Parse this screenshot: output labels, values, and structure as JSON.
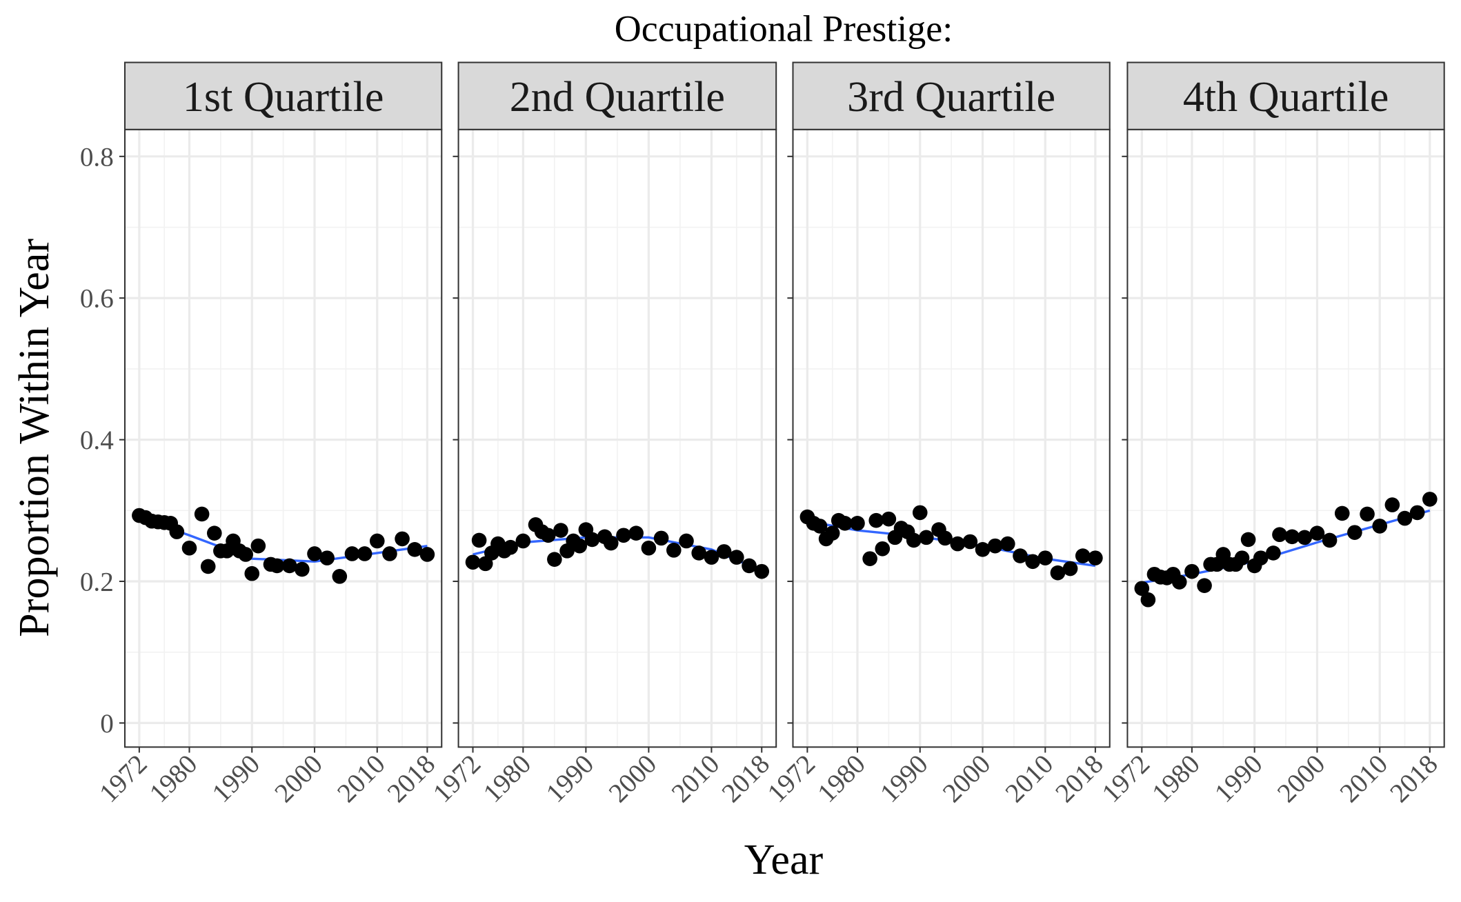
{
  "figure": {
    "title": "Occupational Prestige:",
    "x_label": "Year",
    "y_label": "Proportion Within Year"
  },
  "chart_data": [
    {
      "type": "scatter",
      "title": "1st Quartile",
      "color": "#000000",
      "smooth_color": "#3366ff",
      "x": [
        1972,
        1973,
        1974,
        1975,
        1976,
        1977,
        1978,
        1980,
        1982,
        1983,
        1984,
        1985,
        1986,
        1987,
        1988,
        1989,
        1990,
        1991,
        1993,
        1994,
        1996,
        1998,
        2000,
        2002,
        2004,
        2006,
        2008,
        2010,
        2012,
        2014,
        2016,
        2018
      ],
      "values": [
        0.293,
        0.29,
        0.285,
        0.284,
        0.283,
        0.282,
        0.27,
        0.247,
        0.295,
        0.221,
        0.268,
        0.243,
        0.243,
        0.257,
        0.243,
        0.238,
        0.211,
        0.25,
        0.224,
        0.222,
        0.222,
        0.217,
        0.239,
        0.233,
        0.207,
        0.239,
        0.239,
        0.257,
        0.239,
        0.26,
        0.245,
        0.238
      ],
      "smooth_x": [
        1972,
        1980,
        1990,
        2000,
        2010,
        2018
      ],
      "smooth_values": [
        0.29,
        0.265,
        0.232,
        0.228,
        0.24,
        0.25
      ],
      "xlim": [
        1969.7,
        2020.3
      ],
      "ylim": [
        -0.034,
        0.838
      ],
      "xticks": [
        1972,
        1980,
        1990,
        2000,
        2010,
        2018
      ],
      "yticks": [
        0.0,
        0.2,
        0.4,
        0.6,
        0.8
      ],
      "grid": true
    },
    {
      "type": "scatter",
      "title": "2nd Quartile",
      "color": "#000000",
      "smooth_color": "#3366ff",
      "x": [
        1972,
        1973,
        1974,
        1975,
        1976,
        1977,
        1978,
        1980,
        1982,
        1983,
        1984,
        1985,
        1986,
        1987,
        1988,
        1989,
        1990,
        1991,
        1993,
        1994,
        1996,
        1998,
        2000,
        2002,
        2004,
        2006,
        2008,
        2010,
        2012,
        2014,
        2016,
        2018
      ],
      "values": [
        0.227,
        0.258,
        0.225,
        0.24,
        0.253,
        0.243,
        0.248,
        0.257,
        0.28,
        0.27,
        0.265,
        0.231,
        0.272,
        0.243,
        0.257,
        0.25,
        0.273,
        0.259,
        0.263,
        0.254,
        0.265,
        0.268,
        0.247,
        0.261,
        0.244,
        0.257,
        0.24,
        0.234,
        0.242,
        0.234,
        0.222,
        0.214
      ],
      "smooth_x": [
        1972,
        1980,
        1990,
        2000,
        2010,
        2018
      ],
      "smooth_values": [
        0.238,
        0.255,
        0.262,
        0.262,
        0.245,
        0.215
      ],
      "xlim": [
        1969.7,
        2020.3
      ],
      "ylim": [
        -0.034,
        0.838
      ],
      "xticks": [
        1972,
        1980,
        1990,
        2000,
        2010,
        2018
      ],
      "yticks": [
        0.0,
        0.2,
        0.4,
        0.6,
        0.8
      ],
      "grid": true
    },
    {
      "type": "scatter",
      "title": "3rd Quartile",
      "color": "#000000",
      "smooth_color": "#3366ff",
      "x": [
        1972,
        1973,
        1974,
        1975,
        1976,
        1977,
        1978,
        1980,
        1982,
        1983,
        1984,
        1985,
        1986,
        1987,
        1988,
        1989,
        1990,
        1991,
        1993,
        1994,
        1996,
        1998,
        2000,
        2002,
        2004,
        2006,
        2008,
        2010,
        2012,
        2014,
        2016,
        2018
      ],
      "values": [
        0.291,
        0.282,
        0.278,
        0.26,
        0.268,
        0.286,
        0.282,
        0.282,
        0.232,
        0.286,
        0.246,
        0.288,
        0.262,
        0.275,
        0.27,
        0.258,
        0.297,
        0.262,
        0.273,
        0.261,
        0.253,
        0.256,
        0.245,
        0.25,
        0.253,
        0.236,
        0.228,
        0.233,
        0.212,
        0.218,
        0.236,
        0.233
      ],
      "smooth_x": [
        1972,
        1980,
        1990,
        2000,
        2010,
        2018
      ],
      "smooth_values": [
        0.285,
        0.272,
        0.263,
        0.25,
        0.232,
        0.222
      ],
      "xlim": [
        1969.7,
        2020.3
      ],
      "ylim": [
        -0.034,
        0.838
      ],
      "xticks": [
        1972,
        1980,
        1990,
        2000,
        2010,
        2018
      ],
      "yticks": [
        0.0,
        0.2,
        0.4,
        0.6,
        0.8
      ],
      "grid": true
    },
    {
      "type": "scatter",
      "title": "4th Quartile",
      "color": "#000000",
      "smooth_color": "#3366ff",
      "x": [
        1972,
        1973,
        1974,
        1975,
        1976,
        1977,
        1978,
        1980,
        1982,
        1983,
        1984,
        1985,
        1986,
        1987,
        1988,
        1989,
        1990,
        1991,
        1993,
        1994,
        1996,
        1998,
        2000,
        2002,
        2004,
        2006,
        2008,
        2010,
        2012,
        2014,
        2016,
        2018
      ],
      "values": [
        0.19,
        0.174,
        0.21,
        0.206,
        0.205,
        0.21,
        0.199,
        0.214,
        0.194,
        0.224,
        0.224,
        0.238,
        0.224,
        0.224,
        0.233,
        0.259,
        0.222,
        0.233,
        0.24,
        0.266,
        0.263,
        0.262,
        0.268,
        0.258,
        0.296,
        0.269,
        0.295,
        0.278,
        0.308,
        0.289,
        0.297,
        0.316
      ],
      "smooth_x": [
        1972,
        1980,
        1990,
        2000,
        2010,
        2018
      ],
      "smooth_values": [
        0.198,
        0.21,
        0.228,
        0.255,
        0.28,
        0.3
      ],
      "xlim": [
        1969.7,
        2020.3
      ],
      "ylim": [
        -0.034,
        0.838
      ],
      "xticks": [
        1972,
        1980,
        1990,
        2000,
        2010,
        2018
      ],
      "yticks": [
        0.0,
        0.2,
        0.4,
        0.6,
        0.8
      ],
      "grid": true
    }
  ]
}
